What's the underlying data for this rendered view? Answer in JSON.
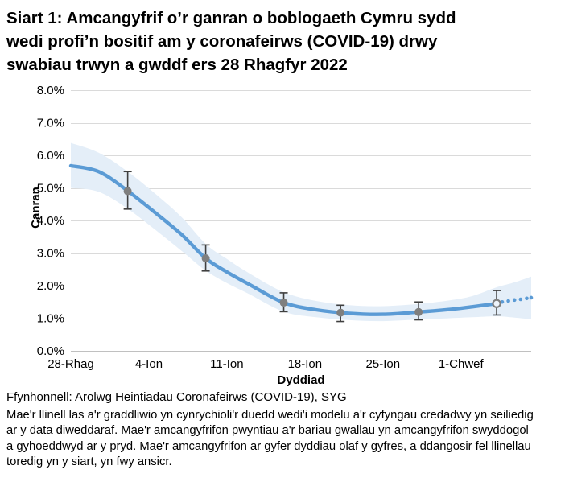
{
  "page": {
    "title_lines": [
      "Siart 1: Amcangyfrif o’r ganran o boblogaeth Cymru sydd",
      "wedi profi’n bositif am y coronafeirws (COVID-19) drwy",
      "swabiau trwyn a gwddf ers 28 Rhagfyr 2022"
    ],
    "source_line": "Ffynhonnell: Arolwg Heintiadau Coronafeirws (COVID-19), SYG",
    "note_lines": [
      "Mae'r llinell las a'r graddliwio yn cynrychioli'r duedd wedi'i modelu a'r cyfyngau credadwy yn seiliedig",
      "ar y data diweddaraf. Mae'r amcangyfrifon pwyntiau a'r bariau gwallau yn amcangyfrifon swyddogol",
      "a gyhoeddwyd ar y pryd. Mae'r amcangyfrifon ar gyfer dyddiau olaf y gyfres, a ddangosir fel llinellau",
      "toredig yn y siart, yn fwy ansicr."
    ]
  },
  "chart_data": {
    "type": "line",
    "title": "Siart 1: Amcangyfrif o’r ganran o boblogaeth Cymru sydd wedi profi’n bositif am y coronafeirws (COVID-19) drwy swabiau trwyn a gwddf ers 28 Rhagfyr 2022",
    "xlabel": "Dyddiad",
    "ylabel": "Canran",
    "ylim": [
      0,
      8
    ],
    "ytick_labels": [
      "0.0%",
      "1.0%",
      "2.0%",
      "3.0%",
      "4.0%",
      "5.0%",
      "6.0%",
      "7.0%",
      "8.0%"
    ],
    "xticks": [
      {
        "day": 0,
        "label": "28-Rhag"
      },
      {
        "day": 7,
        "label": "4-Ion"
      },
      {
        "day": 14,
        "label": "11-Ion"
      },
      {
        "day": 21,
        "label": "18-Ion"
      },
      {
        "day": 28,
        "label": "25-Ion"
      },
      {
        "day": 35,
        "label": "1-Chwef"
      }
    ],
    "x_domain_days": [
      0,
      41.3
    ],
    "grid": "horizontal",
    "legend": "none",
    "colors": {
      "trend": "#5B9BD5",
      "band": "#E4EEF8",
      "marker": "#7F7F7F",
      "error_bar": "#3F3F3F",
      "gridline": "#DADADA",
      "axis_line": "#C0C0C0"
    },
    "trend_solid": [
      [
        0,
        5.68
      ],
      [
        2.5,
        5.5
      ],
      [
        5.1,
        4.91
      ],
      [
        8,
        4.12
      ],
      [
        10,
        3.55
      ],
      [
        12.1,
        2.84
      ],
      [
        14,
        2.42
      ],
      [
        16,
        2.04
      ],
      [
        19.1,
        1.48
      ],
      [
        22,
        1.26
      ],
      [
        25,
        1.15
      ],
      [
        28,
        1.12
      ],
      [
        31.2,
        1.19
      ],
      [
        34,
        1.27
      ],
      [
        36,
        1.35
      ],
      [
        38.2,
        1.45
      ]
    ],
    "trend_dotted_dots": [
      [
        38.7,
        1.5
      ],
      [
        39.25,
        1.53
      ],
      [
        39.8,
        1.56
      ],
      [
        40.35,
        1.58
      ],
      [
        40.9,
        1.61
      ],
      [
        41.3,
        1.63
      ]
    ],
    "band_upper": [
      [
        0,
        6.38
      ],
      [
        2.5,
        6.08
      ],
      [
        5.1,
        5.5
      ],
      [
        8,
        4.7
      ],
      [
        10,
        4.08
      ],
      [
        12.1,
        3.28
      ],
      [
        14,
        2.82
      ],
      [
        16,
        2.38
      ],
      [
        19.1,
        1.8
      ],
      [
        22,
        1.53
      ],
      [
        25,
        1.4
      ],
      [
        28,
        1.37
      ],
      [
        31.2,
        1.44
      ],
      [
        34,
        1.55
      ],
      [
        36,
        1.68
      ],
      [
        38.2,
        1.95
      ],
      [
        39.8,
        2.1
      ],
      [
        41.3,
        2.28
      ]
    ],
    "band_lower": [
      [
        0,
        5.0
      ],
      [
        2.5,
        4.88
      ],
      [
        5.1,
        4.36
      ],
      [
        8,
        3.6
      ],
      [
        10,
        3.05
      ],
      [
        12.1,
        2.46
      ],
      [
        14,
        2.08
      ],
      [
        16,
        1.74
      ],
      [
        19.1,
        1.2
      ],
      [
        22,
        1.03
      ],
      [
        25,
        0.94
      ],
      [
        28,
        0.91
      ],
      [
        31.2,
        0.96
      ],
      [
        34,
        1.0
      ],
      [
        36,
        1.03
      ],
      [
        38.2,
        1.06
      ],
      [
        39.8,
        1.02
      ],
      [
        41.3,
        0.97
      ]
    ],
    "point_estimates": [
      {
        "day": 5.1,
        "value": 4.9,
        "lo": 4.35,
        "hi": 5.5,
        "marker": "filled"
      },
      {
        "day": 12.1,
        "value": 2.84,
        "lo": 2.45,
        "hi": 3.25,
        "marker": "filled"
      },
      {
        "day": 19.1,
        "value": 1.48,
        "lo": 1.2,
        "hi": 1.78,
        "marker": "filled"
      },
      {
        "day": 24.2,
        "value": 1.17,
        "lo": 0.9,
        "hi": 1.4,
        "marker": "filled"
      },
      {
        "day": 31.2,
        "value": 1.19,
        "lo": 0.95,
        "hi": 1.5,
        "marker": "filled"
      },
      {
        "day": 38.2,
        "value": 1.45,
        "lo": 1.1,
        "hi": 1.85,
        "marker": "open"
      }
    ]
  }
}
